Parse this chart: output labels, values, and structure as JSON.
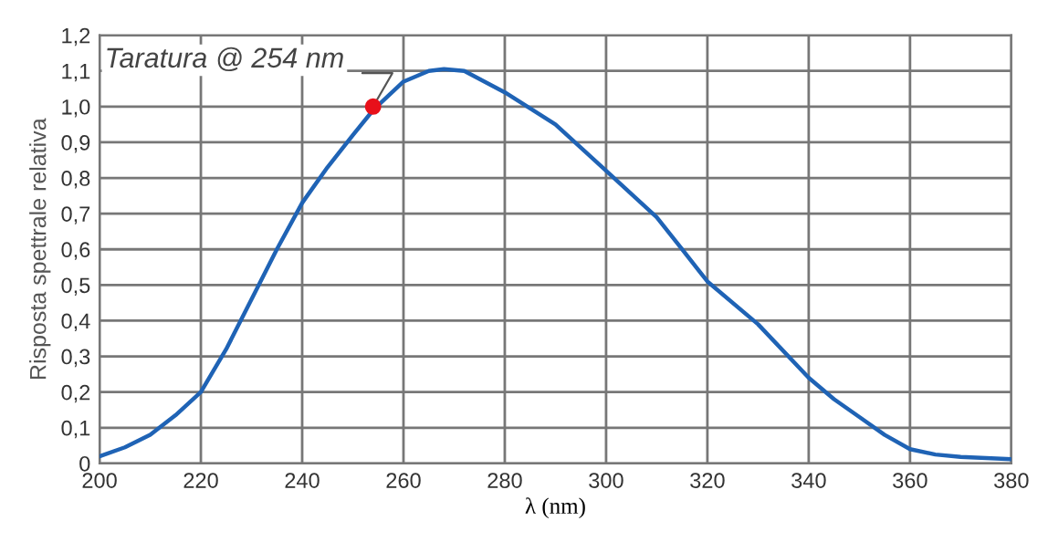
{
  "chart_data": {
    "type": "line",
    "xlabel": "λ (nm)",
    "ylabel": "Risposta spettrale relativa",
    "xlim": [
      200,
      380
    ],
    "xticks": [
      200,
      220,
      240,
      260,
      280,
      300,
      320,
      340,
      360,
      380
    ],
    "ylim": [
      0,
      1.2
    ],
    "yticks": [
      0,
      {
        "value": 0.1,
        "label": "0,1"
      },
      {
        "value": 0.2,
        "label": "0,2"
      },
      {
        "value": 0.3,
        "label": "0,3"
      },
      {
        "value": 0.4,
        "label": "0,4"
      },
      {
        "value": 0.5,
        "label": "0,5"
      },
      {
        "value": 0.6,
        "label": "0,6"
      },
      {
        "value": 0.7,
        "label": "0,7"
      },
      {
        "value": 0.8,
        "label": "0,8"
      },
      {
        "value": 0.9,
        "label": "0,9"
      },
      {
        "value": 1.0,
        "label": "1,0"
      },
      {
        "value": 1.1,
        "label": "1,1"
      },
      {
        "value": 1.2,
        "label": "1,2"
      }
    ],
    "grid": true,
    "legend": false,
    "marker": "none",
    "line_style": "solid",
    "series": [
      {
        "color": "#1f63b5",
        "x": [
          200,
          205,
          210,
          215,
          220,
          225,
          230,
          235,
          240,
          245,
          250,
          254,
          260,
          265,
          268,
          272,
          280,
          290,
          300,
          310,
          315,
          320,
          330,
          340,
          345,
          350,
          355,
          360,
          365,
          370,
          380
        ],
        "values": [
          0.02,
          0.045,
          0.08,
          0.135,
          0.2,
          0.32,
          0.46,
          0.6,
          0.73,
          0.83,
          0.92,
          0.99,
          1.07,
          1.1,
          1.105,
          1.1,
          1.04,
          0.95,
          0.82,
          0.69,
          0.6,
          0.51,
          0.39,
          0.24,
          0.18,
          0.13,
          0.08,
          0.04,
          0.025,
          0.018,
          0.012
        ]
      },
      {
        "type": "scatter",
        "color": "#e8101a",
        "marker": "circle",
        "x": [
          254
        ],
        "values": [
          1.0
        ]
      }
    ],
    "annotations": [
      {
        "text": "Taratura @ 254 nm",
        "x": 254,
        "y": 1.0
      }
    ]
  }
}
